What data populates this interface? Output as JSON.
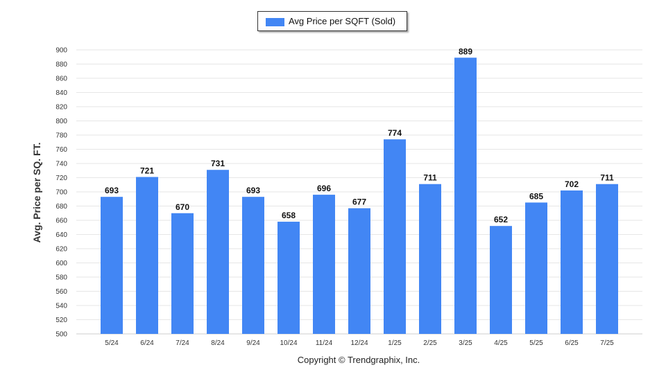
{
  "legend": {
    "label": "Avg Price per SQFT (Sold)"
  },
  "footer": {
    "copyright": "Copyright © Trendgraphix, Inc."
  },
  "colors": {
    "bar": "#4286f4",
    "grid": "#e6e6e6",
    "axis_text": "#333333"
  },
  "chart_data": {
    "type": "bar",
    "title": "",
    "xlabel": "",
    "ylabel": "Avg. Price per SQ. FT.",
    "ylim": [
      500,
      900
    ],
    "ytick_step": 20,
    "grid": true,
    "legend_position": "top-center",
    "categories": [
      "5/24",
      "6/24",
      "7/24",
      "8/24",
      "9/24",
      "10/24",
      "11/24",
      "12/24",
      "1/25",
      "2/25",
      "3/25",
      "4/25",
      "5/25",
      "6/25",
      "7/25"
    ],
    "series": [
      {
        "name": "Avg Price per SQFT (Sold)",
        "values": [
          693,
          721,
          670,
          731,
          693,
          658,
          696,
          677,
          774,
          711,
          889,
          652,
          685,
          702,
          711
        ]
      }
    ]
  }
}
